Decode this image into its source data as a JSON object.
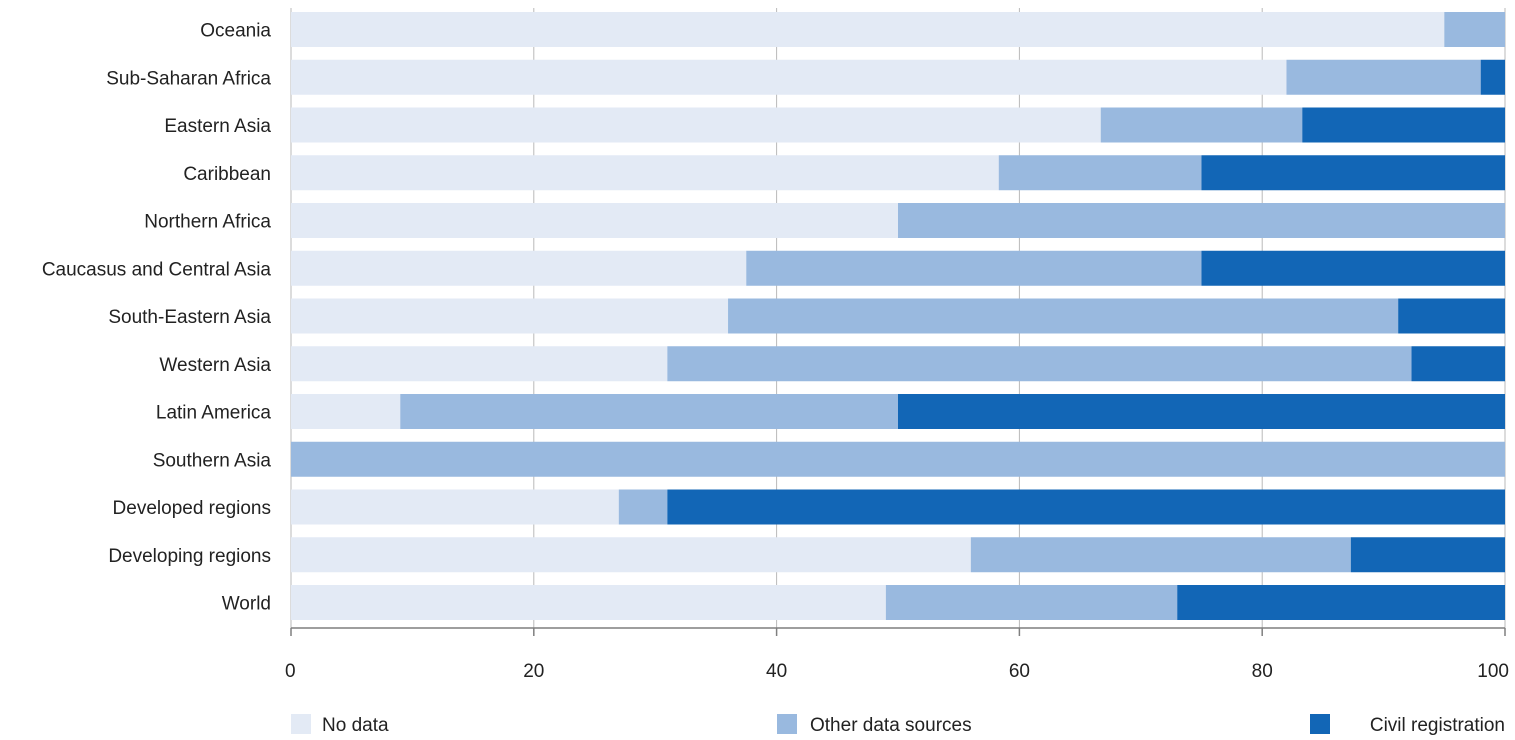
{
  "chart_data": {
    "type": "bar",
    "orientation": "horizontal",
    "stacked": true,
    "title": "",
    "xlabel": "",
    "ylabel": "",
    "xlim": [
      0,
      100
    ],
    "xticks": [
      0,
      20,
      40,
      60,
      80,
      100
    ],
    "grid": "vertical",
    "legend_position": "bottom",
    "categories": [
      "Oceania",
      "Sub-Saharan Africa",
      "Eastern Asia",
      "Caribbean",
      "Northern Africa",
      "Caucasus and Central Asia",
      "South-Eastern Asia",
      "Western Asia",
      "Latin America",
      "Southern Asia",
      "Developed regions",
      "Developing regions",
      "World"
    ],
    "series": [
      {
        "name": "No data",
        "color": "#e3eaf5",
        "values": [
          95,
          82,
          66.7,
          58.3,
          50,
          37.5,
          36,
          31,
          9,
          0,
          27,
          56,
          49
        ]
      },
      {
        "name": "Other data sources",
        "color": "#99b9df",
        "values": [
          5,
          16,
          16.6,
          16.7,
          50,
          37.5,
          55.2,
          61.3,
          41,
          100,
          4,
          31.3,
          24
        ]
      },
      {
        "name": "Civil registration",
        "color": "#1266b6",
        "values": [
          0,
          2,
          16.7,
          25,
          0,
          25,
          8.8,
          7.7,
          50,
          0,
          69,
          12.7,
          27
        ]
      }
    ]
  }
}
